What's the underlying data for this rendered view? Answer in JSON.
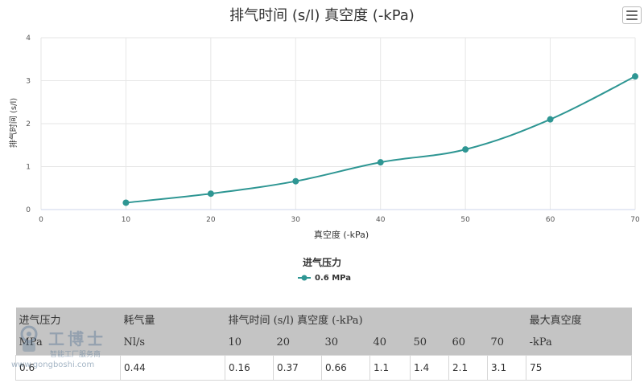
{
  "chart_data": {
    "type": "line",
    "title": "排气时间 (s/l) 真空度 (-kPa)",
    "xlabel": "真空度 (-kPa)",
    "ylabel": "排气时间 (s/l)",
    "xlim": [
      0,
      70
    ],
    "ylim": [
      0,
      4
    ],
    "x_ticks": [
      "0",
      "10",
      "20",
      "30",
      "40",
      "50",
      "60",
      "70"
    ],
    "y_ticks": [
      "0",
      "1",
      "2",
      "3",
      "4"
    ],
    "grid": true,
    "legend_title": "进气压力",
    "legend_position": "bottom-center",
    "series": [
      {
        "name": "0.6 MPa",
        "color": "#2e9693",
        "x": [
          10,
          20,
          30,
          40,
          50,
          60,
          70
        ],
        "y": [
          0.16,
          0.37,
          0.66,
          1.1,
          1.4,
          2.1,
          3.1
        ]
      }
    ]
  },
  "menu": {
    "icon": "hamburger-menu-icon"
  },
  "table": {
    "header_row1": [
      "进气压力",
      "耗气量",
      "排气时间 (s/l) 真空度 (-kPa)",
      "最大真空度"
    ],
    "header_row2": [
      "MPa",
      "Nl/s",
      "10",
      "20",
      "30",
      "40",
      "50",
      "60",
      "70",
      "-kPa"
    ],
    "row": [
      "0.6",
      "0.44",
      "0.16",
      "0.37",
      "0.66",
      "1.1",
      "1.4",
      "2.1",
      "3.1",
      "75"
    ]
  },
  "watermark": {
    "brand": "工博士",
    "sub": "智能工厂服务商",
    "url": "www.gongboshi.com"
  }
}
